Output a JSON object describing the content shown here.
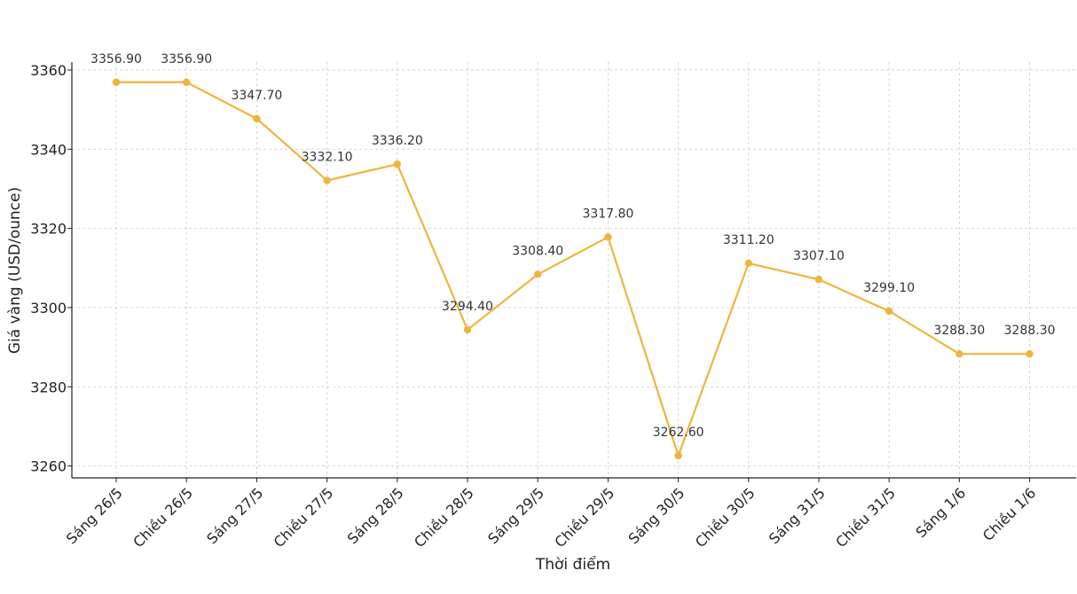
{
  "chart_data": {
    "type": "line",
    "title": "",
    "xlabel": "Thời điểm",
    "ylabel": "Giá vàng (USD/ounce)",
    "ylim": [
      3257,
      3362
    ],
    "yticks": [
      3260,
      3280,
      3300,
      3320,
      3340,
      3360
    ],
    "grid": true,
    "color": "#f0b43c",
    "categories": [
      "Sáng 26/5",
      "Chiều 26/5",
      "Sáng 27/5",
      "Chiều 27/5",
      "Sáng 28/5",
      "Chiều 28/5",
      "Sáng 29/5",
      "Chiều 29/5",
      "Sáng 30/5",
      "Chiều 30/5",
      "Sáng 31/5",
      "Chiều 31/5",
      "Sáng 1/6",
      "Chiều 1/6"
    ],
    "values": [
      3356.9,
      3356.9,
      3347.7,
      3332.1,
      3336.2,
      3294.4,
      3308.4,
      3317.8,
      3262.6,
      3311.2,
      3307.1,
      3299.1,
      3288.3,
      3288.3
    ],
    "data_labels": [
      "3356.90",
      "3356.90",
      "3347.70",
      "3332.10",
      "3336.20",
      "3294.40",
      "3308.40",
      "3317.80",
      "3262.60",
      "3311.20",
      "3307.10",
      "3299.10",
      "3288.30",
      "3288.30"
    ]
  }
}
